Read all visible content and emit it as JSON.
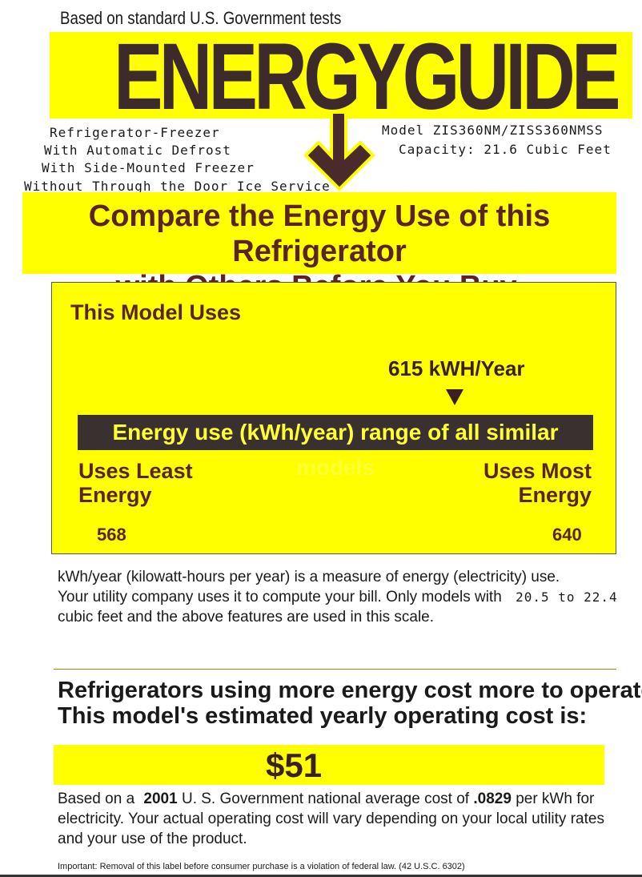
{
  "header": {
    "tests_note": "Based on standard U.S. Government tests",
    "logo_text": "ENERGYGUIDE"
  },
  "product": {
    "features": [
      "Refrigerator-Freezer",
      "With Automatic Defrost",
      "With Side-Mounted Freezer",
      "Without Through the Door Ice Service"
    ],
    "model": "Model ZIS360NM/ZISS360NMSS",
    "capacity": "Capacity: 21.6 Cubic Feet"
  },
  "banner": {
    "line1": "Compare the Energy Use of this Refrigerator",
    "line2": "with Others Before You Buy."
  },
  "usage": {
    "title": "This Model Uses",
    "value": "615 kWH/Year",
    "value_kwh": 615,
    "range_label": "Energy use (kWh/year) range of all similar models",
    "least_label": [
      "Uses Least",
      "Energy"
    ],
    "most_label": [
      "Uses Most",
      "Energy"
    ],
    "min": "568",
    "max": "640"
  },
  "explanation": {
    "line1": "kWh/year (kilowatt-hours per year) is a measure of energy (electricity) use.",
    "line2": "Your utility company uses it to compute your bill. Only models with",
    "range": "20.5 to 22.4",
    "line3": "cubic feet and the above features are used in this scale."
  },
  "cost": {
    "heading1": "Refrigerators using more energy cost more to operate.",
    "heading2": "This model's estimated yearly operating cost is:",
    "amount": "$51",
    "basis_a": "Based on a",
    "year": "2001",
    "basis_b": "U. S. Government national average cost of",
    "rate": ".0829",
    "basis_c": "per kWh for",
    "line2": "electricity. Your actual operating cost will vary depending on your local utility rates",
    "line3": "and your use of the product."
  },
  "footer": {
    "notice": "Important: Removal of this label before consumer purchase is a violation of federal law. (42 U.S.C. 6302)"
  },
  "colors": {
    "yellow": "#ffff00",
    "brown": "#5a2424",
    "dark": "#3a3030"
  }
}
